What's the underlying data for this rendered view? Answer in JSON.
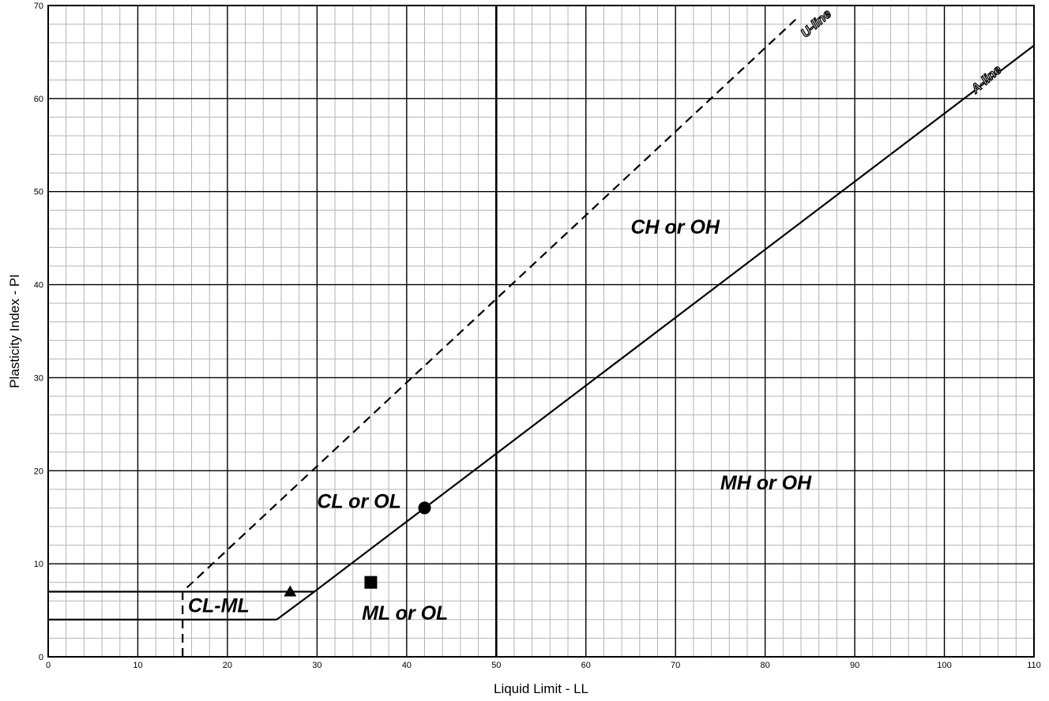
{
  "chart_data": {
    "type": "scatter",
    "title": "",
    "xlabel": "Liquid Limit - LL",
    "ylabel": "Plasticity Index - PI",
    "xlim": [
      0,
      110
    ],
    "ylim": [
      0,
      70
    ],
    "x_ticks": [
      "0",
      "10",
      "20",
      "30",
      "40",
      "50",
      "60",
      "70",
      "80",
      "90",
      "100",
      "110"
    ],
    "y_ticks": [
      "0",
      "10",
      "20",
      "30",
      "40",
      "50",
      "60",
      "70"
    ],
    "grid": true,
    "minor_grid_step": 2,
    "emphasized_gridlines": {
      "x": [
        50
      ]
    },
    "lines": [
      {
        "name": "U-line",
        "style": "dashed",
        "points": [
          [
            15,
            0
          ],
          [
            15,
            7
          ],
          [
            83.4,
            68.5
          ]
        ]
      },
      {
        "name": "A-line",
        "style": "solid",
        "points": [
          [
            25.5,
            4
          ],
          [
            29.7,
            7
          ],
          [
            110,
            65.7
          ]
        ]
      },
      {
        "name": "",
        "style": "solid",
        "points": [
          [
            0,
            4
          ],
          [
            25.5,
            4
          ]
        ]
      },
      {
        "name": "",
        "style": "solid",
        "points": [
          [
            0,
            7
          ],
          [
            29.7,
            7
          ]
        ]
      }
    ],
    "line_labels": [
      {
        "text": "U-line",
        "x": 84.5,
        "y": 66.5
      },
      {
        "text": "A-line",
        "x": 103.5,
        "y": 60.5
      }
    ],
    "regions": [
      {
        "label": "CH or OH",
        "x": 65,
        "y": 45.5
      },
      {
        "label": "CL or OL",
        "x": 30,
        "y": 16
      },
      {
        "label": "MH or OH",
        "x": 75,
        "y": 18
      },
      {
        "label": "ML or OL",
        "x": 35,
        "y": 4
      },
      {
        "label": "CL-ML",
        "x": 15.6,
        "y": 4.8
      }
    ],
    "points": [
      {
        "marker": "circle",
        "x": 42,
        "y": 16
      },
      {
        "marker": "square",
        "x": 36,
        "y": 8
      },
      {
        "marker": "triangle",
        "x": 27,
        "y": 7
      }
    ]
  }
}
